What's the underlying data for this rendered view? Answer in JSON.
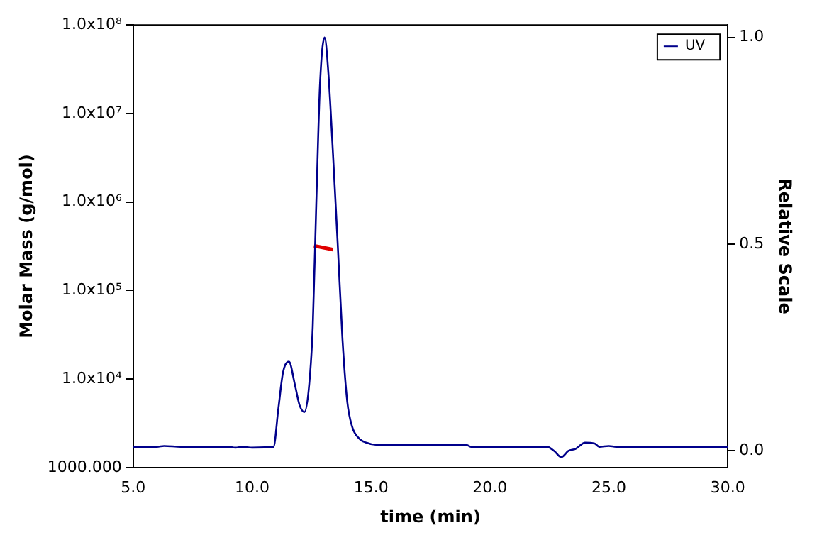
{
  "chart_data": {
    "type": "line",
    "xlabel": "time (min)",
    "ylabel": "Molar Mass (g/mol)",
    "y2label": "Relative Scale",
    "log": "y",
    "grid": false,
    "legend": "top right",
    "marker": "none",
    "line_style": "solid",
    "xlim": [
      5,
      30
    ],
    "xticks": [
      {
        "value": 5,
        "label": "5.0"
      },
      {
        "value": 10,
        "label": "10.0"
      },
      {
        "value": 15,
        "label": "15.0"
      },
      {
        "value": 20,
        "label": "20.0"
      },
      {
        "value": 25,
        "label": "25.0"
      },
      {
        "value": 30,
        "label": "30.0"
      }
    ],
    "ylim": [
      1000,
      100000000
    ],
    "yticks": [
      {
        "value": 1000,
        "label": "1000.000"
      },
      {
        "value": 10000,
        "label": "1.0x10⁴"
      },
      {
        "value": 100000,
        "label": "1.0x10⁵"
      },
      {
        "value": 1000000,
        "label": "1.0x10⁶"
      },
      {
        "value": 10000000,
        "label": "1.0x10⁷"
      },
      {
        "value": 100000000,
        "label": "1.0x10⁸"
      }
    ],
    "y2lim": [
      -0.04,
      1.03
    ],
    "y2ticks": [
      {
        "value": 0,
        "label": "0.0"
      },
      {
        "value": 0.5,
        "label": "0.5"
      },
      {
        "value": 1,
        "label": "1.0"
      }
    ],
    "series": [
      {
        "name": "UV",
        "color": "#00008b",
        "axis": "y2",
        "x": [
          5,
          6,
          6.3,
          7,
          9,
          9.3,
          9.6,
          10,
          10.9,
          11.1,
          11.3,
          11.55,
          11.8,
          12.0,
          12.2,
          12.4,
          12.55,
          12.7,
          12.85,
          13.05,
          13.2,
          13.4,
          13.6,
          13.8,
          14.0,
          14.2,
          14.5,
          14.8,
          15.2,
          16,
          19,
          19.2,
          22.4,
          22.7,
          23.0,
          23.3,
          23.6,
          24.0,
          24.4,
          24.6,
          25,
          25.3,
          30
        ],
        "values": [
          0.01,
          0.01,
          0.012,
          0.01,
          0.01,
          0.008,
          0.01,
          0.008,
          0.01,
          0.1,
          0.19,
          0.216,
          0.16,
          0.11,
          0.094,
          0.16,
          0.3,
          0.6,
          0.88,
          1.0,
          0.92,
          0.72,
          0.5,
          0.27,
          0.12,
          0.06,
          0.03,
          0.02,
          0.015,
          0.015,
          0.015,
          0.01,
          0.01,
          0,
          -0.015,
          0,
          0.005,
          0.02,
          0.018,
          0.01,
          0.012,
          0.01,
          0.01
        ]
      },
      {
        "color": "#e00000",
        "axis": "y",
        "x": [
          12.6,
          13.0,
          13.4
        ],
        "values": [
          320000,
          305000,
          290000
        ]
      }
    ]
  }
}
